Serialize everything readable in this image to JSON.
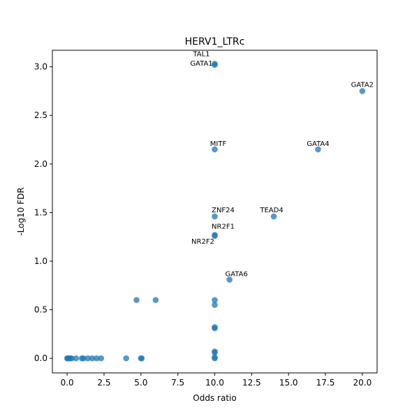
{
  "chart_data": {
    "type": "scatter",
    "title": "HERV1_LTRc",
    "xlabel": "Odds ratio",
    "ylabel": "-Log10 FDR",
    "xlim": [
      -1.0,
      21.0
    ],
    "ylim": [
      -0.15,
      3.17
    ],
    "xticks": [
      0.0,
      2.5,
      5.0,
      7.5,
      10.0,
      12.5,
      15.0,
      17.5,
      20.0
    ],
    "xtick_labels": [
      "0.0",
      "2.5",
      "5.0",
      "7.5",
      "10.0",
      "12.5",
      "15.0",
      "17.5",
      "20.0"
    ],
    "yticks": [
      0.0,
      0.5,
      1.0,
      1.5,
      2.0,
      2.5,
      3.0
    ],
    "ytick_labels": [
      "0.0",
      "0.5",
      "1.0",
      "1.5",
      "2.0",
      "2.5",
      "3.0"
    ],
    "grid": false,
    "marker_color": "#1f77b4",
    "points": [
      {
        "x": 10.0,
        "y": 3.02
      },
      {
        "x": 10.0,
        "y": 3.03
      },
      {
        "x": 20.0,
        "y": 2.75
      },
      {
        "x": 10.0,
        "y": 2.15
      },
      {
        "x": 17.0,
        "y": 2.15
      },
      {
        "x": 10.0,
        "y": 1.46
      },
      {
        "x": 14.0,
        "y": 1.46
      },
      {
        "x": 10.0,
        "y": 1.27
      },
      {
        "x": 10.0,
        "y": 1.26
      },
      {
        "x": 11.0,
        "y": 0.81
      },
      {
        "x": 4.7,
        "y": 0.6
      },
      {
        "x": 6.0,
        "y": 0.6
      },
      {
        "x": 10.0,
        "y": 0.6
      },
      {
        "x": 10.0,
        "y": 0.55
      },
      {
        "x": 10.0,
        "y": 0.32
      },
      {
        "x": 10.0,
        "y": 0.31
      },
      {
        "x": 10.0,
        "y": 0.07
      },
      {
        "x": 10.0,
        "y": 0.06
      },
      {
        "x": 10.0,
        "y": 0.01
      },
      {
        "x": 10.0,
        "y": 0.0
      },
      {
        "x": 0.0,
        "y": 0.0
      },
      {
        "x": 0.05,
        "y": 0.0
      },
      {
        "x": 0.1,
        "y": 0.0
      },
      {
        "x": 0.2,
        "y": 0.0
      },
      {
        "x": 0.3,
        "y": 0.0
      },
      {
        "x": 0.6,
        "y": 0.0
      },
      {
        "x": 1.0,
        "y": 0.0
      },
      {
        "x": 1.1,
        "y": 0.0
      },
      {
        "x": 1.4,
        "y": 0.0
      },
      {
        "x": 1.7,
        "y": 0.0
      },
      {
        "x": 2.0,
        "y": 0.0
      },
      {
        "x": 2.3,
        "y": 0.0
      },
      {
        "x": 4.0,
        "y": 0.0
      },
      {
        "x": 5.0,
        "y": 0.0
      },
      {
        "x": 5.05,
        "y": 0.0
      }
    ],
    "annotations": [
      {
        "text": "TAL1",
        "x": 10.0,
        "y": 3.03
      },
      {
        "text": "GATA1",
        "x": 10.0,
        "y": 3.02
      },
      {
        "text": "GATA2",
        "x": 20.0,
        "y": 2.75
      },
      {
        "text": "MITF",
        "x": 10.0,
        "y": 2.15
      },
      {
        "text": "GATA4",
        "x": 17.0,
        "y": 2.15
      },
      {
        "text": "ZNF24",
        "x": 10.0,
        "y": 1.46
      },
      {
        "text": "TEAD4",
        "x": 14.0,
        "y": 1.46
      },
      {
        "text": "NR2F1",
        "x": 10.0,
        "y": 1.27
      },
      {
        "text": "NR2F2",
        "x": 10.0,
        "y": 1.26
      },
      {
        "text": "GATA6",
        "x": 11.0,
        "y": 0.81
      }
    ]
  }
}
